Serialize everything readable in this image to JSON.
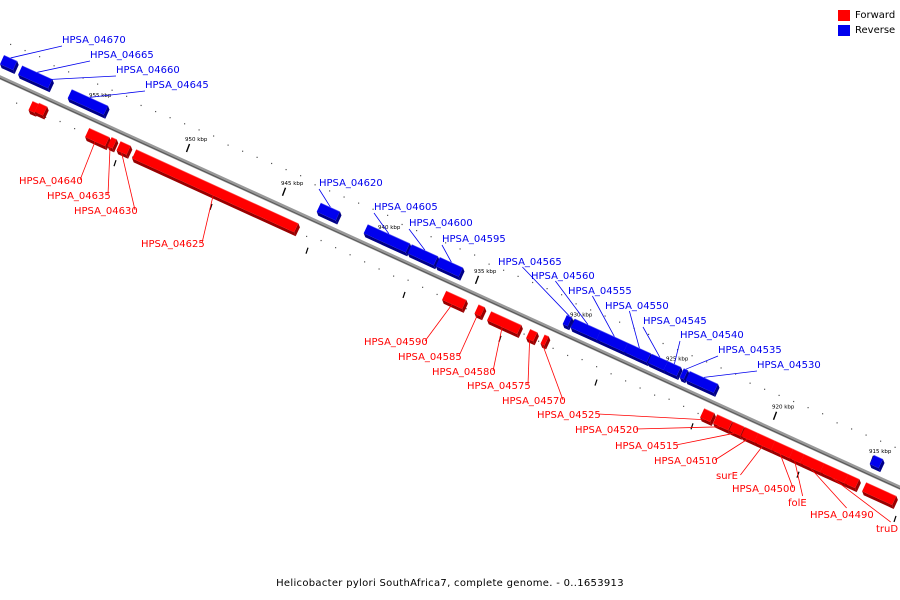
{
  "caption": "Helicobacter pylori SouthAfrica7, complete genome. - 0..1653913",
  "legend": [
    {
      "label": "Forward",
      "color": "#ff0000"
    },
    {
      "label": "Reverse",
      "color": "#0000ff"
    }
  ],
  "colors": {
    "forward": "#ff0000",
    "forward_dark": "#990000",
    "reverse": "#0000ee",
    "reverse_dark": "#000088",
    "axis": "#888888"
  },
  "tick_labels": [
    "955 kbp",
    "950 kbp",
    "945 kbp",
    "940 kbp",
    "935 kbp",
    "930 kbp",
    "925 kbp",
    "920 kbp",
    "915 kbp"
  ],
  "genes": [
    {
      "label": "HPSA_04670",
      "strand": "reverse"
    },
    {
      "label": "HPSA_04665",
      "strand": "reverse"
    },
    {
      "label": "HPSA_04660",
      "strand": "reverse"
    },
    {
      "label": "HPSA_04645",
      "strand": "reverse"
    },
    {
      "label": "HPSA_04640",
      "strand": "forward"
    },
    {
      "label": "HPSA_04635",
      "strand": "forward"
    },
    {
      "label": "HPSA_04630",
      "strand": "forward"
    },
    {
      "label": "HPSA_04625",
      "strand": "forward"
    },
    {
      "label": "HPSA_04620",
      "strand": "reverse"
    },
    {
      "label": "HPSA_04605",
      "strand": "reverse"
    },
    {
      "label": "HPSA_04600",
      "strand": "reverse"
    },
    {
      "label": "HPSA_04595",
      "strand": "reverse"
    },
    {
      "label": "HPSA_04590",
      "strand": "forward"
    },
    {
      "label": "HPSA_04585",
      "strand": "forward"
    },
    {
      "label": "HPSA_04580",
      "strand": "forward"
    },
    {
      "label": "HPSA_04575",
      "strand": "forward"
    },
    {
      "label": "HPSA_04570",
      "strand": "forward"
    },
    {
      "label": "HPSA_04565",
      "strand": "reverse"
    },
    {
      "label": "HPSA_04560",
      "strand": "reverse"
    },
    {
      "label": "HPSA_04555",
      "strand": "reverse"
    },
    {
      "label": "HPSA_04550",
      "strand": "reverse"
    },
    {
      "label": "HPSA_04545",
      "strand": "reverse"
    },
    {
      "label": "HPSA_04540",
      "strand": "reverse"
    },
    {
      "label": "HPSA_04535",
      "strand": "reverse"
    },
    {
      "label": "HPSA_04530",
      "strand": "reverse"
    },
    {
      "label": "HPSA_04525",
      "strand": "forward"
    },
    {
      "label": "HPSA_04520",
      "strand": "forward"
    },
    {
      "label": "HPSA_04515",
      "strand": "forward"
    },
    {
      "label": "HPSA_04510",
      "strand": "forward"
    },
    {
      "label": "surE",
      "strand": "forward"
    },
    {
      "label": "HPSA_04500",
      "strand": "forward"
    },
    {
      "label": "folE",
      "strand": "forward"
    },
    {
      "label": "HPSA_04490",
      "strand": "forward"
    },
    {
      "label": "truD",
      "strand": "forward"
    }
  ]
}
